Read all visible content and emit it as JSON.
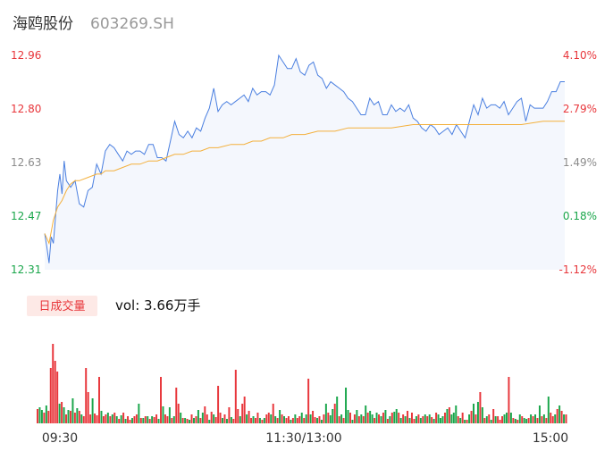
{
  "header": {
    "name": "海鸥股份",
    "code": "603269.SH"
  },
  "volume_panel": {
    "badge": "日成交量",
    "vol_label": "vol: 3.66万手"
  },
  "colors": {
    "price_line": "#4a7fe0",
    "avg_line": "#f3b03c",
    "area_fill": "#f4f7fd",
    "up": "#e8363b",
    "down": "#1aa64b",
    "neutral": "#8c8c8c",
    "badge_bg": "#fde9e6"
  },
  "chart_data": [
    {
      "type": "line",
      "title": "",
      "y_price_ticks": [
        "12.96",
        "12.80",
        "12.63",
        "12.47",
        "12.31"
      ],
      "y_pct_ticks": [
        "4.10%",
        "2.79%",
        "1.49%",
        "0.18%",
        "-1.12%"
      ],
      "ylim": [
        12.31,
        12.96
      ],
      "pct_lim": [
        -1.12,
        4.1
      ],
      "x_ticks": [
        "09:30",
        "11:30/13:00",
        "15:00"
      ],
      "x_range": [
        0,
        240
      ],
      "series": [
        {
          "role": "price",
          "x": [
            0,
            1,
            2,
            3,
            4,
            5,
            6,
            7,
            8,
            9,
            10,
            11,
            12,
            14,
            16,
            18,
            20,
            22,
            24,
            26,
            28,
            30,
            32,
            34,
            36,
            38,
            40,
            42,
            44,
            46,
            48,
            50,
            52,
            54,
            56,
            58,
            60,
            62,
            64,
            66,
            68,
            70,
            72,
            74,
            76,
            78,
            80,
            82,
            84,
            86,
            88,
            90,
            92,
            94,
            96,
            98,
            100,
            102,
            104,
            106,
            108,
            110,
            112,
            114,
            116,
            118,
            120,
            122,
            124,
            126,
            128,
            130,
            132,
            134,
            136,
            138,
            140,
            142,
            144,
            146,
            148,
            150,
            152,
            154,
            156,
            158,
            160,
            162,
            164,
            166,
            168,
            170,
            172,
            174,
            176,
            178,
            180,
            182,
            184,
            186,
            188,
            190,
            192,
            194,
            196,
            198,
            200,
            202,
            204,
            206,
            208,
            210,
            212,
            214,
            216,
            218,
            220,
            222,
            224,
            226,
            228,
            230,
            232,
            234,
            236,
            238,
            240
          ],
          "values": [
            12.42,
            12.38,
            12.33,
            12.41,
            12.39,
            12.47,
            12.55,
            12.6,
            12.54,
            12.64,
            12.58,
            12.57,
            12.56,
            12.58,
            12.51,
            12.5,
            12.55,
            12.56,
            12.63,
            12.6,
            12.67,
            12.69,
            12.68,
            12.66,
            12.64,
            12.67,
            12.66,
            12.67,
            12.67,
            12.66,
            12.69,
            12.69,
            12.65,
            12.65,
            12.64,
            12.7,
            12.76,
            12.72,
            12.71,
            12.73,
            12.71,
            12.74,
            12.73,
            12.77,
            12.8,
            12.86,
            12.79,
            12.81,
            12.82,
            12.81,
            12.82,
            12.83,
            12.84,
            12.82,
            12.86,
            12.84,
            12.85,
            12.85,
            12.84,
            12.87,
            12.96,
            12.94,
            12.92,
            12.92,
            12.95,
            12.91,
            12.9,
            12.93,
            12.94,
            12.9,
            12.89,
            12.86,
            12.88,
            12.87,
            12.86,
            12.85,
            12.83,
            12.82,
            12.8,
            12.78,
            12.78,
            12.83,
            12.81,
            12.82,
            12.78,
            12.78,
            12.81,
            12.79,
            12.8,
            12.79,
            12.81,
            12.77,
            12.76,
            12.74,
            12.73,
            12.75,
            12.74,
            12.72,
            12.73,
            12.74,
            12.72,
            12.75,
            12.73,
            12.71,
            12.76,
            12.81,
            12.78,
            12.83,
            12.8,
            12.81,
            12.81,
            12.8,
            12.82,
            12.78,
            12.8,
            12.82,
            12.83,
            12.76,
            12.81,
            12.8,
            12.8,
            12.8,
            12.82,
            12.85,
            12.85,
            12.88,
            12.88
          ]
        },
        {
          "role": "average",
          "x": [
            0,
            2,
            4,
            6,
            8,
            10,
            12,
            14,
            16,
            20,
            24,
            26,
            28,
            32,
            36,
            40,
            44,
            48,
            52,
            56,
            60,
            64,
            68,
            72,
            76,
            80,
            86,
            92,
            96,
            100,
            104,
            110,
            114,
            120,
            126,
            130,
            134,
            140,
            150,
            160,
            170,
            180,
            190,
            200,
            210,
            220,
            230,
            240
          ],
          "values": [
            12.42,
            12.39,
            12.46,
            12.5,
            12.52,
            12.55,
            12.57,
            12.58,
            12.58,
            12.59,
            12.6,
            12.6,
            12.61,
            12.61,
            12.62,
            12.63,
            12.63,
            12.64,
            12.64,
            12.65,
            12.66,
            12.66,
            12.67,
            12.67,
            12.68,
            12.68,
            12.69,
            12.69,
            12.7,
            12.7,
            12.71,
            12.71,
            12.72,
            12.72,
            12.73,
            12.73,
            12.73,
            12.74,
            12.74,
            12.74,
            12.75,
            12.75,
            12.75,
            12.75,
            12.75,
            12.75,
            12.76,
            12.76
          ]
        }
      ]
    },
    {
      "type": "bar",
      "title": "",
      "unit": "relative",
      "ylim": [
        0,
        100
      ],
      "values": [
        16,
        18,
        15,
        12,
        20,
        14,
        62,
        89,
        70,
        58,
        22,
        24,
        18,
        10,
        15,
        14,
        28,
        12,
        17,
        14,
        10,
        8,
        62,
        35,
        10,
        28,
        11,
        9,
        52,
        14,
        8,
        10,
        12,
        8,
        10,
        12,
        8,
        5,
        9,
        12,
        5,
        8,
        4,
        6,
        8,
        10,
        22,
        6,
        6,
        8,
        8,
        5,
        8,
        7,
        10,
        5,
        52,
        19,
        10,
        8,
        18,
        6,
        8,
        40,
        22,
        12,
        6,
        6,
        5,
        4,
        10,
        6,
        8,
        15,
        6,
        12,
        19,
        10,
        4,
        13,
        10,
        7,
        42,
        12,
        6,
        10,
        5,
        18,
        7,
        5,
        60,
        16,
        8,
        22,
        30,
        10,
        14,
        6,
        8,
        6,
        12,
        6,
        4,
        6,
        10,
        12,
        10,
        22,
        8,
        6,
        15,
        10,
        8,
        6,
        8,
        4,
        6,
        10,
        6,
        8,
        12,
        6,
        10,
        50,
        10,
        14,
        7,
        6,
        8,
        4,
        10,
        22,
        12,
        9,
        16,
        22,
        30,
        8,
        10,
        6,
        40,
        15,
        12,
        4,
        10,
        15,
        8,
        10,
        8,
        20,
        12,
        14,
        10,
        6,
        12,
        10,
        8,
        12,
        15,
        5,
        8,
        12,
        13,
        16,
        12,
        6,
        10,
        8,
        14,
        6,
        12,
        5,
        8,
        10,
        6,
        8,
        10,
        8,
        10,
        7,
        5,
        12,
        10,
        6,
        8,
        12,
        16,
        18,
        10,
        12,
        20,
        8,
        6,
        12,
        4,
        4,
        10,
        14,
        22,
        10,
        24,
        35,
        18,
        6,
        8,
        10,
        4,
        16,
        8,
        8,
        4,
        8,
        10,
        12,
        52,
        12,
        6,
        5,
        4,
        10,
        8,
        6,
        5,
        6,
        10,
        8,
        10,
        6,
        20,
        8,
        10,
        6,
        30,
        12,
        8,
        10,
        16,
        20,
        14,
        10,
        10
      ],
      "directions": [
        "u",
        "d",
        "d",
        "u",
        "d",
        "u",
        "u",
        "u",
        "u",
        "u",
        "d",
        "u",
        "d",
        "u",
        "d",
        "u",
        "d",
        "u",
        "d",
        "u",
        "d",
        "u",
        "u",
        "u",
        "u",
        "d",
        "u",
        "u",
        "u",
        "d",
        "u",
        "u",
        "d",
        "u",
        "d",
        "u",
        "d",
        "u",
        "d",
        "u",
        "d",
        "u",
        "u",
        "d",
        "u",
        "u",
        "d",
        "u",
        "d",
        "u",
        "d",
        "u",
        "d",
        "u",
        "u",
        "d",
        "u",
        "d",
        "u",
        "u",
        "d",
        "u",
        "d",
        "u",
        "u",
        "d",
        "u",
        "d",
        "u",
        "d",
        "u",
        "d",
        "u",
        "d",
        "u",
        "d",
        "u",
        "u",
        "d",
        "u",
        "d",
        "u",
        "u",
        "u",
        "d",
        "u",
        "d",
        "u",
        "d",
        "u",
        "u",
        "u",
        "d",
        "u",
        "u",
        "d",
        "u",
        "u",
        "d",
        "u",
        "u",
        "d",
        "u",
        "d",
        "u",
        "u",
        "d",
        "u",
        "d",
        "u",
        "d",
        "u",
        "d",
        "u",
        "u",
        "d",
        "u",
        "d",
        "u",
        "u",
        "d",
        "u",
        "d",
        "u",
        "d",
        "u",
        "u",
        "d",
        "u",
        "d",
        "u",
        "d",
        "u",
        "d",
        "d",
        "u",
        "d",
        "u",
        "d",
        "u",
        "d",
        "d",
        "u",
        "d",
        "u",
        "d",
        "u",
        "d",
        "u",
        "d",
        "u",
        "d",
        "d",
        "u",
        "d",
        "u",
        "d",
        "u",
        "d",
        "u",
        "d",
        "u",
        "d",
        "d",
        "u",
        "d",
        "u",
        "d",
        "u",
        "d",
        "u",
        "u",
        "d",
        "u",
        "d",
        "u",
        "d",
        "u",
        "d",
        "u",
        "d",
        "u",
        "d",
        "d",
        "d",
        "u",
        "d",
        "u",
        "d",
        "d",
        "d",
        "u",
        "d",
        "u",
        "d",
        "u",
        "d",
        "u",
        "d",
        "u",
        "d",
        "u",
        "d",
        "u",
        "d",
        "u",
        "d",
        "u",
        "d",
        "u",
        "u",
        "u",
        "d",
        "d",
        "u",
        "d",
        "u",
        "d",
        "u",
        "d",
        "u",
        "d",
        "d",
        "u",
        "d",
        "u",
        "d",
        "u",
        "d",
        "u",
        "d",
        "u",
        "d",
        "u",
        "u",
        "d",
        "u",
        "d",
        "u",
        "d",
        "u",
        "d",
        "u",
        "u",
        "d",
        "u",
        "d",
        "u",
        "u",
        "d",
        "n"
      ]
    }
  ]
}
